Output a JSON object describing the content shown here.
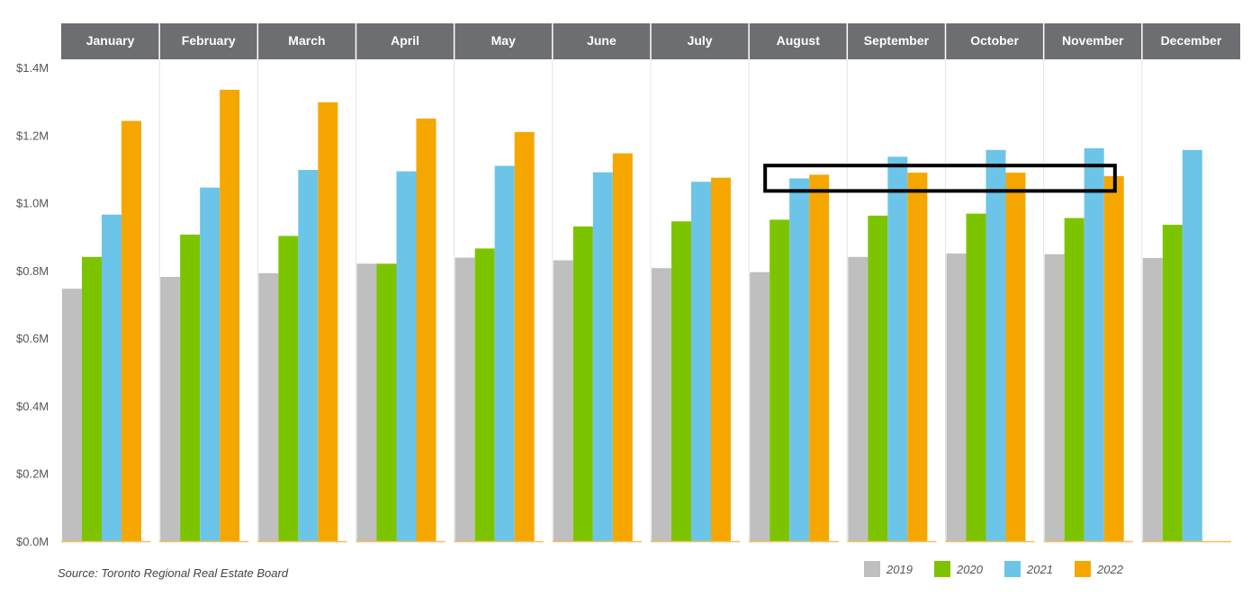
{
  "chart_data": {
    "type": "bar",
    "categories": [
      "January",
      "February",
      "March",
      "April",
      "May",
      "June",
      "July",
      "August",
      "September",
      "October",
      "November",
      "December"
    ],
    "series": [
      {
        "name": "2019",
        "color": "#bfbfbf",
        "values": [
          0.746,
          0.781,
          0.792,
          0.82,
          0.838,
          0.83,
          0.807,
          0.795,
          0.84,
          0.85,
          0.848,
          0.837
        ]
      },
      {
        "name": "2020",
        "color": "#7dc400",
        "values": [
          0.84,
          0.906,
          0.902,
          0.82,
          0.865,
          0.93,
          0.945,
          0.95,
          0.962,
          0.968,
          0.955,
          0.935
        ]
      },
      {
        "name": "2021",
        "color": "#6cc5e8",
        "values": [
          0.965,
          1.045,
          1.097,
          1.093,
          1.109,
          1.09,
          1.062,
          1.072,
          1.136,
          1.156,
          1.161,
          1.156
        ]
      },
      {
        "name": "2022",
        "color": "#f5a700",
        "values": [
          1.242,
          1.334,
          1.297,
          1.249,
          1.209,
          1.146,
          1.074,
          1.083,
          1.089,
          1.089,
          1.079,
          null
        ]
      }
    ],
    "y_tick_labels": [
      "$0.0M",
      "$0.2M",
      "$0.4M",
      "$0.6M",
      "$0.8M",
      "$1.0M",
      "$1.2M",
      "$1.4M"
    ],
    "y_ticks": [
      0,
      0.2,
      0.4,
      0.6,
      0.8,
      1.0,
      1.2,
      1.4
    ],
    "ylim": [
      0,
      1.4
    ],
    "title": "",
    "xlabel": "",
    "ylabel": "",
    "grid": false,
    "legend_position": "bottom-right",
    "highlight": {
      "from_category": "August",
      "to_category": "November",
      "y_from": 1.035,
      "y_to": 1.11
    }
  },
  "source": "Source: Toronto Regional Real Estate Board",
  "colors": {
    "header_bg": "#6d6e71",
    "header_text": "#ffffff",
    "axis": "#f0c060"
  }
}
